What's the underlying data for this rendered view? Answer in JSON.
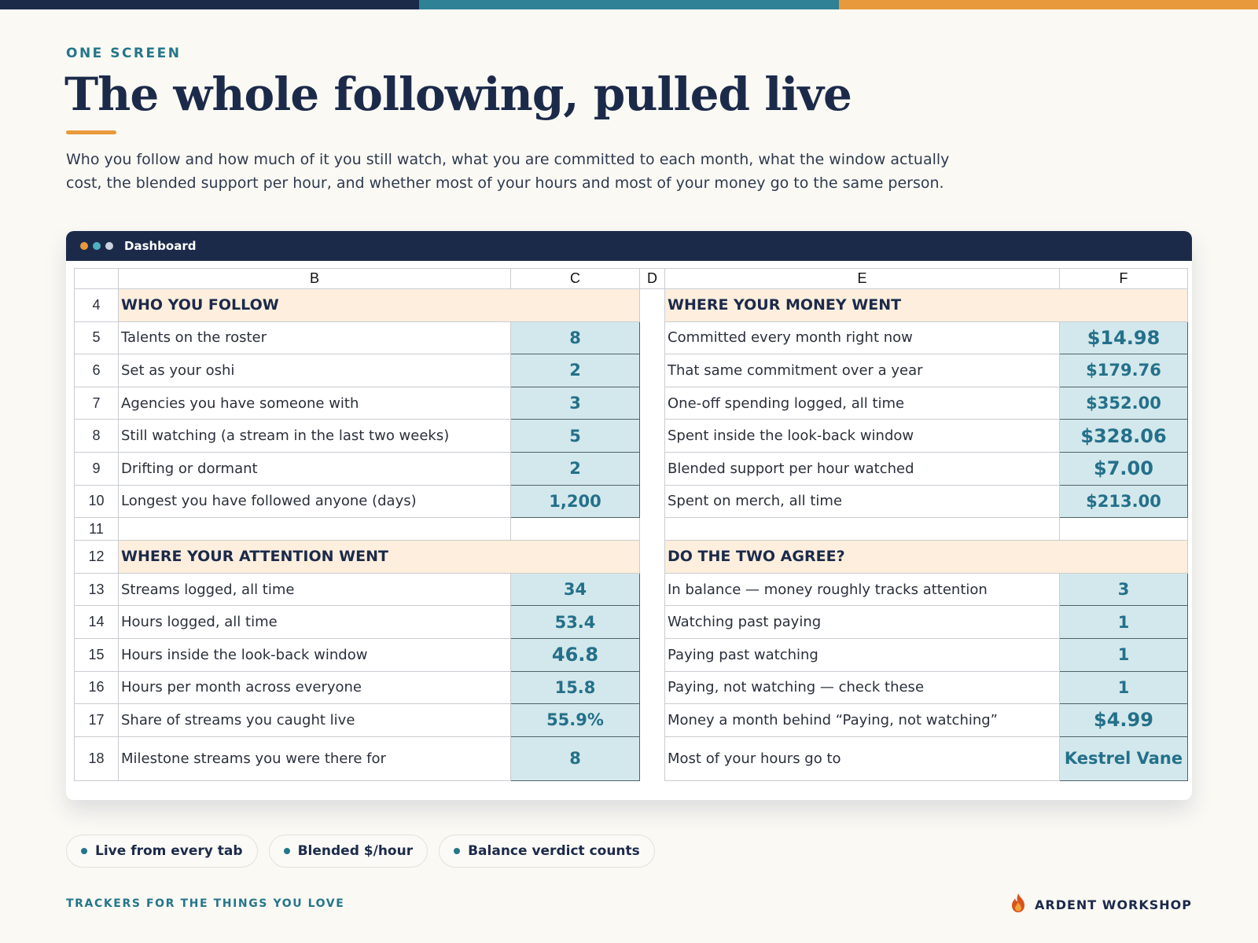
{
  "colors": {
    "navy": "#1c2a4a",
    "teal": "#2f8196",
    "orange": "#e8993b",
    "section_fill": "#fdeedd",
    "value_fill": "#d3e8ec"
  },
  "header": {
    "eyebrow": "ONE SCREEN",
    "title": "The whole following, pulled live",
    "subtitle": "Who you follow and how much of it you still watch, what you are committed to each month, what the window actually cost, the blended support per hour, and whether most of your hours and most of your money go to the same person."
  },
  "window": {
    "title": "Dashboard",
    "dots": [
      "#e8993b",
      "#4fb0c0",
      "#c9d2de"
    ]
  },
  "sheet": {
    "columns": [
      "B",
      "C",
      "D",
      "E",
      "F"
    ],
    "rows": [
      {
        "num": "4",
        "type": "section",
        "left": "WHO YOU FOLLOW",
        "right": "WHERE YOUR MONEY WENT"
      },
      {
        "num": "5",
        "left_label": "Talents on the roster",
        "left_value": "8",
        "right_label": "Committed every month right now",
        "right_value": "$14.98"
      },
      {
        "num": "6",
        "left_label": "Set as your oshi",
        "left_value": "2",
        "right_label": "That same commitment over a year",
        "right_value": "$179.76"
      },
      {
        "num": "7",
        "left_label": "Agencies you have someone with",
        "left_value": "3",
        "right_label": "One-off spending logged, all time",
        "right_value": "$352.00"
      },
      {
        "num": "8",
        "left_label": "Still watching (a stream in the last two weeks)",
        "left_value": "5",
        "right_label": "Spent inside the look-back window",
        "right_value": "$328.06"
      },
      {
        "num": "9",
        "left_label": "Drifting or dormant",
        "left_value": "2",
        "right_label": "Blended support per hour watched",
        "right_value": "$7.00"
      },
      {
        "num": "10",
        "left_label": "Longest you have followed anyone (days)",
        "left_value": "1,200",
        "right_label": "Spent on merch, all time",
        "right_value": "$213.00"
      },
      {
        "num": "11",
        "type": "blank"
      },
      {
        "num": "12",
        "type": "section",
        "left": "WHERE YOUR ATTENTION WENT",
        "right": "DO THE TWO AGREE?"
      },
      {
        "num": "13",
        "left_label": "Streams logged, all time",
        "left_value": "34",
        "right_label": "In balance — money roughly tracks attention",
        "right_value": "3"
      },
      {
        "num": "14",
        "left_label": "Hours logged, all time",
        "left_value": "53.4",
        "right_label": "Watching past paying",
        "right_value": "1"
      },
      {
        "num": "15",
        "left_label": "Hours inside the look-back window",
        "left_value": "46.8",
        "right_label": "Paying past watching",
        "right_value": "1"
      },
      {
        "num": "16",
        "left_label": "Hours per month across everyone",
        "left_value": "15.8",
        "right_label": "Paying, not watching — check these",
        "right_value": "1"
      },
      {
        "num": "17",
        "left_label": "Share of streams you caught live",
        "left_value": "55.9%",
        "right_label": "Money a month behind “Paying, not watching”",
        "right_value": "$4.99"
      },
      {
        "num": "18",
        "left_label": "Milestone streams you were there for",
        "left_value": "8",
        "right_label": "Most of your hours go to",
        "right_value": "Kestrel Vane"
      }
    ]
  },
  "chips": [
    "Live from every tab",
    "Blended $/hour",
    "Balance verdict counts"
  ],
  "footer": {
    "tagline": "TRACKERS FOR THE THINGS YOU LOVE",
    "brand": "ARDENT WORKSHOP",
    "brand_icon": "flame-icon"
  }
}
